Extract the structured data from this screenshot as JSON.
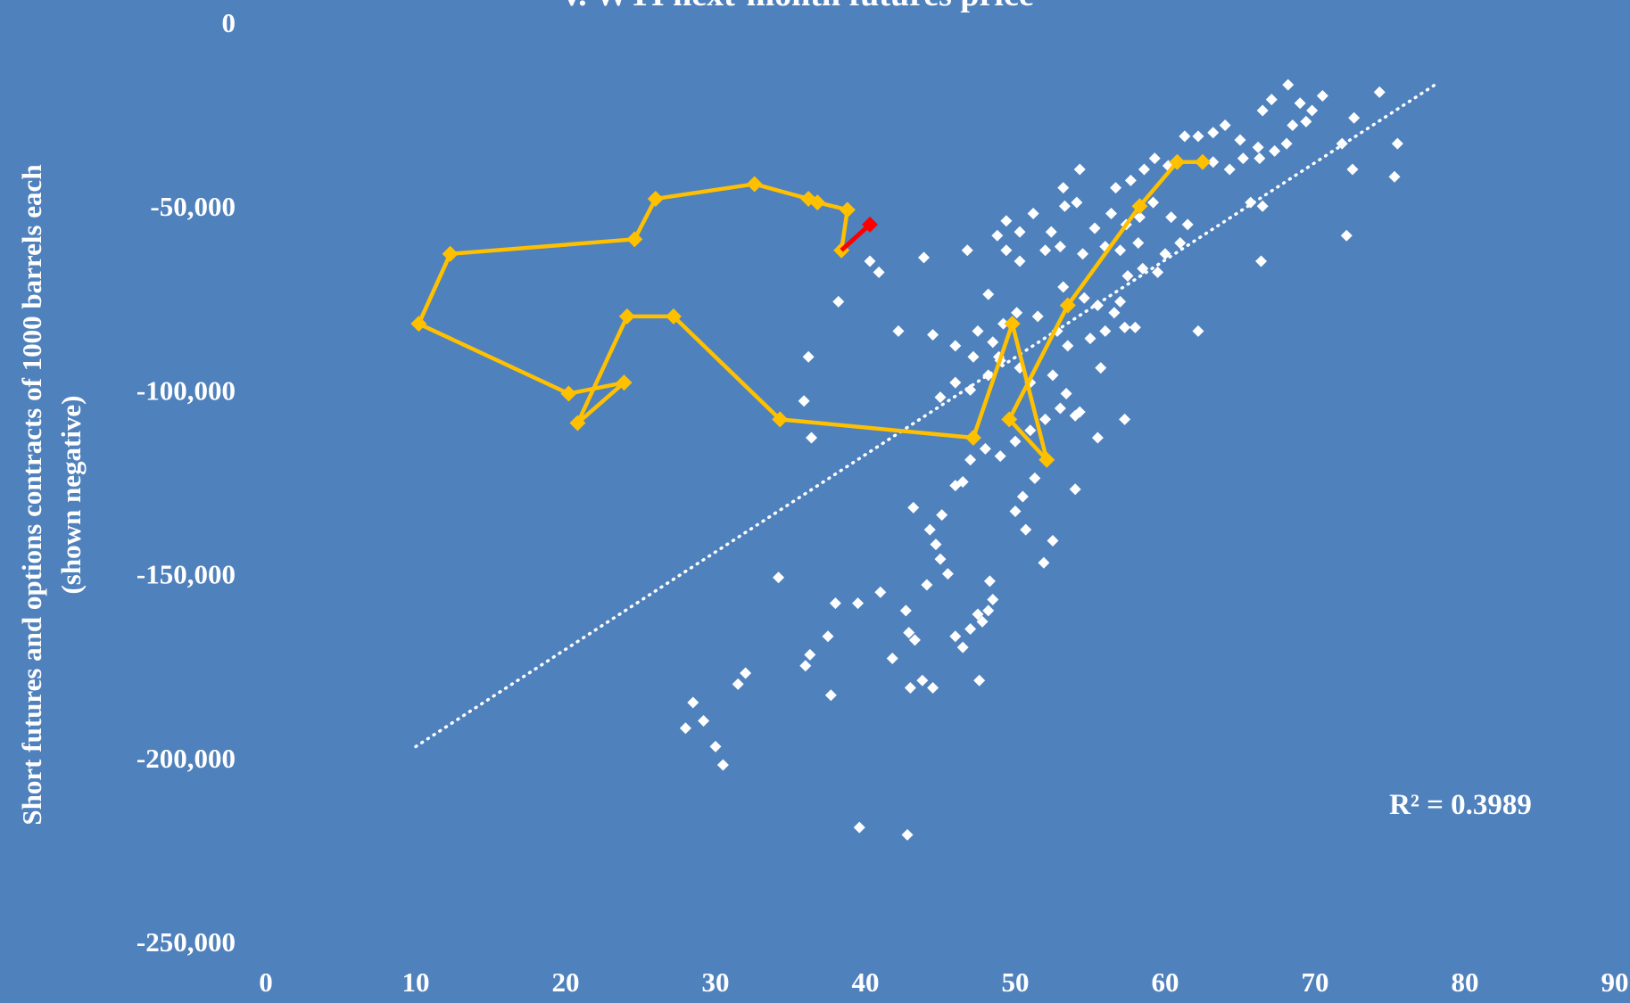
{
  "colors": {
    "background": "#4f81bd",
    "scatter": "#ffffff",
    "trend": "#ffffff",
    "path": "#ffc000",
    "latest": "#ff0000"
  },
  "chart_data": {
    "type": "scatter",
    "title": "v. WTI next-month futures price",
    "xlabel": "",
    "ylabel_line1": "Short futures and options contracts of 1000 barrels each",
    "ylabel_line2": "(shown negative)",
    "xlim": [
      0,
      90
    ],
    "ylim": [
      -250000,
      0
    ],
    "x_ticks": [
      0,
      10,
      20,
      30,
      40,
      50,
      60,
      70,
      80,
      90
    ],
    "y_ticks": [
      0,
      -50000,
      -100000,
      -150000,
      -200000,
      -250000
    ],
    "x_tick_labels": [
      "0",
      "10",
      "20",
      "30",
      "40",
      "50",
      "60",
      "70",
      "80",
      "90"
    ],
    "y_tick_labels": [
      "0",
      "-50,000",
      "-100,000",
      "-150,000",
      "-200,000",
      "-250,000"
    ],
    "grid": false,
    "legend": "none",
    "annotation": "R² = 0.3989",
    "trendline": {
      "x": [
        10,
        78
      ],
      "y": [
        -197000,
        -17000
      ],
      "style": "dotted"
    },
    "scatter_points": [
      [
        28,
        -192000
      ],
      [
        28.5,
        -185000
      ],
      [
        29.2,
        -190000
      ],
      [
        30,
        -197000
      ],
      [
        30.5,
        -202000
      ],
      [
        31.5,
        -180000
      ],
      [
        32,
        -177000
      ],
      [
        34.2,
        -151000
      ],
      [
        36,
        -175000
      ],
      [
        36.3,
        -172000
      ],
      [
        37.5,
        -167000
      ],
      [
        37.7,
        -183000
      ],
      [
        38,
        -158000
      ],
      [
        39.5,
        -158000
      ],
      [
        39.6,
        -219000
      ],
      [
        41,
        -155000
      ],
      [
        41.8,
        -173000
      ],
      [
        42.7,
        -160000
      ],
      [
        42.9,
        -166000
      ],
      [
        43,
        -181000
      ],
      [
        43.3,
        -168000
      ],
      [
        43.8,
        -179000
      ],
      [
        44.5,
        -181000
      ],
      [
        44.1,
        -153000
      ],
      [
        43.2,
        -132000
      ],
      [
        44.3,
        -138000
      ],
      [
        44.7,
        -142000
      ],
      [
        45,
        -146000
      ],
      [
        45.5,
        -150000
      ],
      [
        46,
        -167000
      ],
      [
        46.5,
        -170000
      ],
      [
        47,
        -165000
      ],
      [
        47.5,
        -161000
      ],
      [
        47.8,
        -163000
      ],
      [
        48.2,
        -160000
      ],
      [
        48.5,
        -157000
      ],
      [
        48.3,
        -152000
      ],
      [
        47.6,
        -179000
      ],
      [
        42.8,
        -221000
      ],
      [
        45.1,
        -134000
      ],
      [
        46,
        -126000
      ],
      [
        46.5,
        -125000
      ],
      [
        47,
        -119000
      ],
      [
        48,
        -116000
      ],
      [
        49,
        -118000
      ],
      [
        50,
        -114000
      ],
      [
        51,
        -111000
      ],
      [
        52,
        -108000
      ],
      [
        53,
        -105000
      ],
      [
        54,
        -107000
      ],
      [
        50,
        -133000
      ],
      [
        50.5,
        -129000
      ],
      [
        51.3,
        -124000
      ],
      [
        52.5,
        -141000
      ],
      [
        51.9,
        -147000
      ],
      [
        50.7,
        -138000
      ],
      [
        54,
        -127000
      ],
      [
        55.5,
        -113000
      ],
      [
        57.3,
        -108000
      ],
      [
        45,
        -102000
      ],
      [
        46,
        -98000
      ],
      [
        47,
        -100000
      ],
      [
        48.2,
        -96000
      ],
      [
        49,
        -92000
      ],
      [
        50.3,
        -94000
      ],
      [
        51,
        -98000
      ],
      [
        52.5,
        -96000
      ],
      [
        53.4,
        -101000
      ],
      [
        54.3,
        -106000
      ],
      [
        55.7,
        -94000
      ],
      [
        44.5,
        -85000
      ],
      [
        46,
        -88000
      ],
      [
        47.5,
        -84000
      ],
      [
        48.5,
        -87000
      ],
      [
        49.2,
        -82000
      ],
      [
        50.1,
        -79000
      ],
      [
        51.5,
        -80000
      ],
      [
        52.8,
        -84000
      ],
      [
        53.5,
        -88000
      ],
      [
        55,
        -86000
      ],
      [
        56,
        -84000
      ],
      [
        57.3,
        -83000
      ],
      [
        58,
        -83000
      ],
      [
        47.2,
        -91000
      ],
      [
        48.9,
        -91000
      ],
      [
        53.2,
        -72000
      ],
      [
        54.6,
        -75000
      ],
      [
        55.5,
        -77000
      ],
      [
        56.6,
        -79000
      ],
      [
        57,
        -76000
      ],
      [
        57.5,
        -69000
      ],
      [
        58.5,
        -67000
      ],
      [
        59.5,
        -68000
      ],
      [
        52,
        -62000
      ],
      [
        53,
        -61000
      ],
      [
        54.5,
        -63000
      ],
      [
        56,
        -61000
      ],
      [
        57,
        -62000
      ],
      [
        58.2,
        -60000
      ],
      [
        60,
        -63000
      ],
      [
        61,
        -60000
      ],
      [
        48.8,
        -58000
      ],
      [
        49.4,
        -54000
      ],
      [
        50.3,
        -57000
      ],
      [
        51.2,
        -52000
      ],
      [
        52.4,
        -57000
      ],
      [
        53.3,
        -50000
      ],
      [
        54.1,
        -49000
      ],
      [
        55.3,
        -56000
      ],
      [
        56.4,
        -52000
      ],
      [
        57.4,
        -55000
      ],
      [
        58.3,
        -53000
      ],
      [
        59.2,
        -49000
      ],
      [
        60.4,
        -53000
      ],
      [
        61.5,
        -55000
      ],
      [
        53.2,
        -45000
      ],
      [
        54.3,
        -40000
      ],
      [
        56.7,
        -45000
      ],
      [
        57.7,
        -43000
      ],
      [
        58.6,
        -40000
      ],
      [
        59.3,
        -37000
      ],
      [
        60.2,
        -39000
      ],
      [
        61.3,
        -31000
      ],
      [
        62.2,
        -31000
      ],
      [
        63.2,
        -30000
      ],
      [
        64,
        -28000
      ],
      [
        65,
        -32000
      ],
      [
        66.2,
        -34000
      ],
      [
        67.3,
        -35000
      ],
      [
        68.1,
        -33000
      ],
      [
        63.2,
        -38000
      ],
      [
        64.3,
        -40000
      ],
      [
        65.2,
        -37000
      ],
      [
        66.3,
        -37000
      ],
      [
        66.5,
        -24000
      ],
      [
        67.1,
        -21000
      ],
      [
        68.2,
        -17000
      ],
      [
        69,
        -22000
      ],
      [
        69.8,
        -24000
      ],
      [
        70.5,
        -20000
      ],
      [
        71.8,
        -33000
      ],
      [
        72.6,
        -26000
      ],
      [
        74.3,
        -19000
      ],
      [
        75.5,
        -33000
      ],
      [
        75.3,
        -42000
      ],
      [
        72.5,
        -40000
      ],
      [
        72.1,
        -58000
      ],
      [
        66.4,
        -65000
      ],
      [
        66.5,
        -50000
      ],
      [
        62.2,
        -84000
      ],
      [
        68.5,
        -28000
      ],
      [
        69.4,
        -27000
      ],
      [
        65.7,
        -49000
      ],
      [
        36.4,
        -113000
      ],
      [
        35.9,
        -103000
      ],
      [
        36.2,
        -91000
      ],
      [
        38.2,
        -76000
      ],
      [
        40.3,
        -65000
      ],
      [
        40.9,
        -68000
      ],
      [
        42.2,
        -84000
      ],
      [
        43.9,
        -64000
      ],
      [
        46.8,
        -62000
      ],
      [
        48.2,
        -74000
      ],
      [
        49.4,
        -62000
      ],
      [
        50.3,
        -65000
      ]
    ],
    "path": {
      "x": [
        62.5,
        60.8,
        58.3,
        53.5,
        49.6,
        52.1,
        49.8,
        47.2,
        34.3,
        27.2,
        24.1,
        20.8,
        23.9,
        20.2,
        10.2,
        12.3,
        24.6,
        26,
        32.6,
        36.2,
        36.8,
        38.8,
        38.4
      ],
      "y": [
        -38000,
        -38000,
        -50000,
        -77000,
        -108000,
        -119000,
        -82000,
        -113000,
        -108000,
        -80000,
        -80000,
        -109000,
        -98000,
        -101000,
        -82000,
        -63000,
        -59000,
        -48000,
        -44000,
        -48000,
        -49000,
        -51000,
        -62000
      ]
    },
    "latest_segment": {
      "x": [
        38.4,
        40.3
      ],
      "y": [
        -62000,
        -55000
      ]
    }
  }
}
